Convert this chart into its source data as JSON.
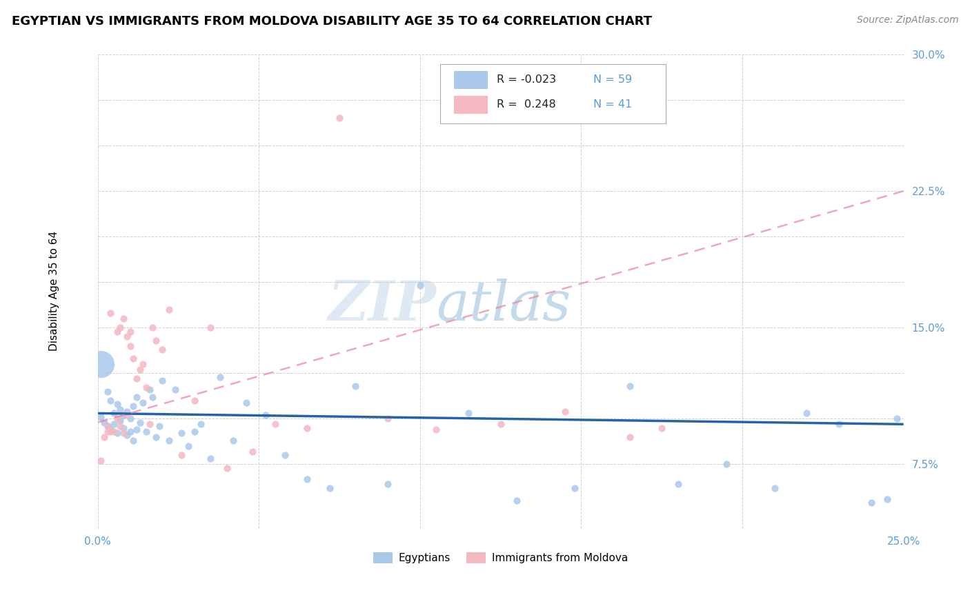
{
  "title": "EGYPTIAN VS IMMIGRANTS FROM MOLDOVA DISABILITY AGE 35 TO 64 CORRELATION CHART",
  "source": "Source: ZipAtlas.com",
  "ylabel": "Disability Age 35 to 64",
  "xlim": [
    0.0,
    0.25
  ],
  "ylim": [
    0.04,
    0.3
  ],
  "xtick_positions": [
    0.0,
    0.05,
    0.1,
    0.15,
    0.2,
    0.25
  ],
  "xtick_labels": [
    "0.0%",
    "",
    "",
    "",
    "",
    "25.0%"
  ],
  "ytick_positions": [
    0.075,
    0.1,
    0.125,
    0.15,
    0.175,
    0.2,
    0.225,
    0.25,
    0.275,
    0.3
  ],
  "ytick_labels": [
    "7.5%",
    "",
    "",
    "15.0%",
    "",
    "",
    "22.5%",
    "",
    "",
    "30.0%"
  ],
  "legend_items": [
    {
      "label_r": "R = -0.023",
      "label_n": "N = 59",
      "color": "#aac8ea"
    },
    {
      "label_r": "R =  0.248",
      "label_n": "N = 41",
      "color": "#f4b8c1"
    }
  ],
  "bottom_legend": [
    {
      "label": "Egyptians",
      "color": "#aac8ea"
    },
    {
      "label": "Immigrants from Moldova",
      "color": "#f4b8c1"
    }
  ],
  "blue_scatter_x": [
    0.001,
    0.002,
    0.003,
    0.003,
    0.004,
    0.004,
    0.005,
    0.005,
    0.006,
    0.006,
    0.007,
    0.007,
    0.008,
    0.008,
    0.009,
    0.009,
    0.01,
    0.01,
    0.011,
    0.011,
    0.012,
    0.012,
    0.013,
    0.014,
    0.015,
    0.016,
    0.017,
    0.018,
    0.019,
    0.02,
    0.022,
    0.024,
    0.026,
    0.028,
    0.03,
    0.032,
    0.035,
    0.038,
    0.042,
    0.046,
    0.052,
    0.058,
    0.065,
    0.072,
    0.08,
    0.09,
    0.1,
    0.115,
    0.13,
    0.148,
    0.165,
    0.18,
    0.195,
    0.21,
    0.22,
    0.23,
    0.24,
    0.245,
    0.248
  ],
  "blue_scatter_y": [
    0.101,
    0.098,
    0.115,
    0.096,
    0.11,
    0.094,
    0.103,
    0.097,
    0.108,
    0.092,
    0.105,
    0.099,
    0.102,
    0.095,
    0.104,
    0.091,
    0.1,
    0.093,
    0.107,
    0.088,
    0.112,
    0.094,
    0.098,
    0.109,
    0.093,
    0.116,
    0.112,
    0.09,
    0.096,
    0.121,
    0.088,
    0.116,
    0.092,
    0.085,
    0.093,
    0.097,
    0.078,
    0.123,
    0.088,
    0.109,
    0.102,
    0.08,
    0.067,
    0.062,
    0.118,
    0.064,
    0.173,
    0.103,
    0.055,
    0.062,
    0.118,
    0.064,
    0.075,
    0.062,
    0.103,
    0.097,
    0.054,
    0.056,
    0.1
  ],
  "blue_scatter_size": [
    30,
    30,
    30,
    30,
    30,
    30,
    30,
    30,
    30,
    30,
    30,
    30,
    30,
    30,
    30,
    30,
    30,
    30,
    30,
    30,
    30,
    30,
    30,
    30,
    30,
    30,
    30,
    30,
    30,
    30,
    30,
    30,
    30,
    30,
    30,
    30,
    30,
    30,
    30,
    30,
    30,
    30,
    30,
    30,
    30,
    30,
    30,
    30,
    30,
    30,
    30,
    30,
    30,
    30,
    30,
    30,
    30,
    30,
    30
  ],
  "blue_large_x": [
    0.001
  ],
  "blue_large_y": [
    0.13
  ],
  "pink_scatter_x": [
    0.001,
    0.002,
    0.003,
    0.003,
    0.004,
    0.004,
    0.005,
    0.006,
    0.006,
    0.007,
    0.007,
    0.008,
    0.008,
    0.009,
    0.009,
    0.01,
    0.01,
    0.011,
    0.012,
    0.013,
    0.014,
    0.015,
    0.016,
    0.017,
    0.018,
    0.02,
    0.022,
    0.026,
    0.03,
    0.035,
    0.04,
    0.048,
    0.055,
    0.065,
    0.075,
    0.09,
    0.105,
    0.125,
    0.145,
    0.165,
    0.175
  ],
  "pink_scatter_y": [
    0.077,
    0.09,
    0.096,
    0.093,
    0.093,
    0.158,
    0.093,
    0.1,
    0.148,
    0.096,
    0.15,
    0.092,
    0.155,
    0.145,
    0.102,
    0.14,
    0.148,
    0.133,
    0.122,
    0.127,
    0.13,
    0.117,
    0.097,
    0.15,
    0.143,
    0.138,
    0.16,
    0.08,
    0.11,
    0.15,
    0.073,
    0.082,
    0.097,
    0.095,
    0.265,
    0.1,
    0.094,
    0.097,
    0.104,
    0.09,
    0.095
  ],
  "blue_line_x": [
    0.0,
    0.25
  ],
  "blue_line_y": [
    0.103,
    0.097
  ],
  "pink_line_x": [
    0.0,
    0.25
  ],
  "pink_line_y": [
    0.098,
    0.225
  ],
  "blue_scatter_color": "#aac8ea",
  "pink_scatter_color": "#f4b8c1",
  "blue_line_color": "#2563a8",
  "pink_line_color": "#e8829a",
  "watermark_zip": "ZIP",
  "watermark_atlas": "atlas",
  "grid_color": "#cccccc",
  "title_fontsize": 13,
  "axis_label_fontsize": 11,
  "tick_fontsize": 11,
  "source_fontsize": 10
}
